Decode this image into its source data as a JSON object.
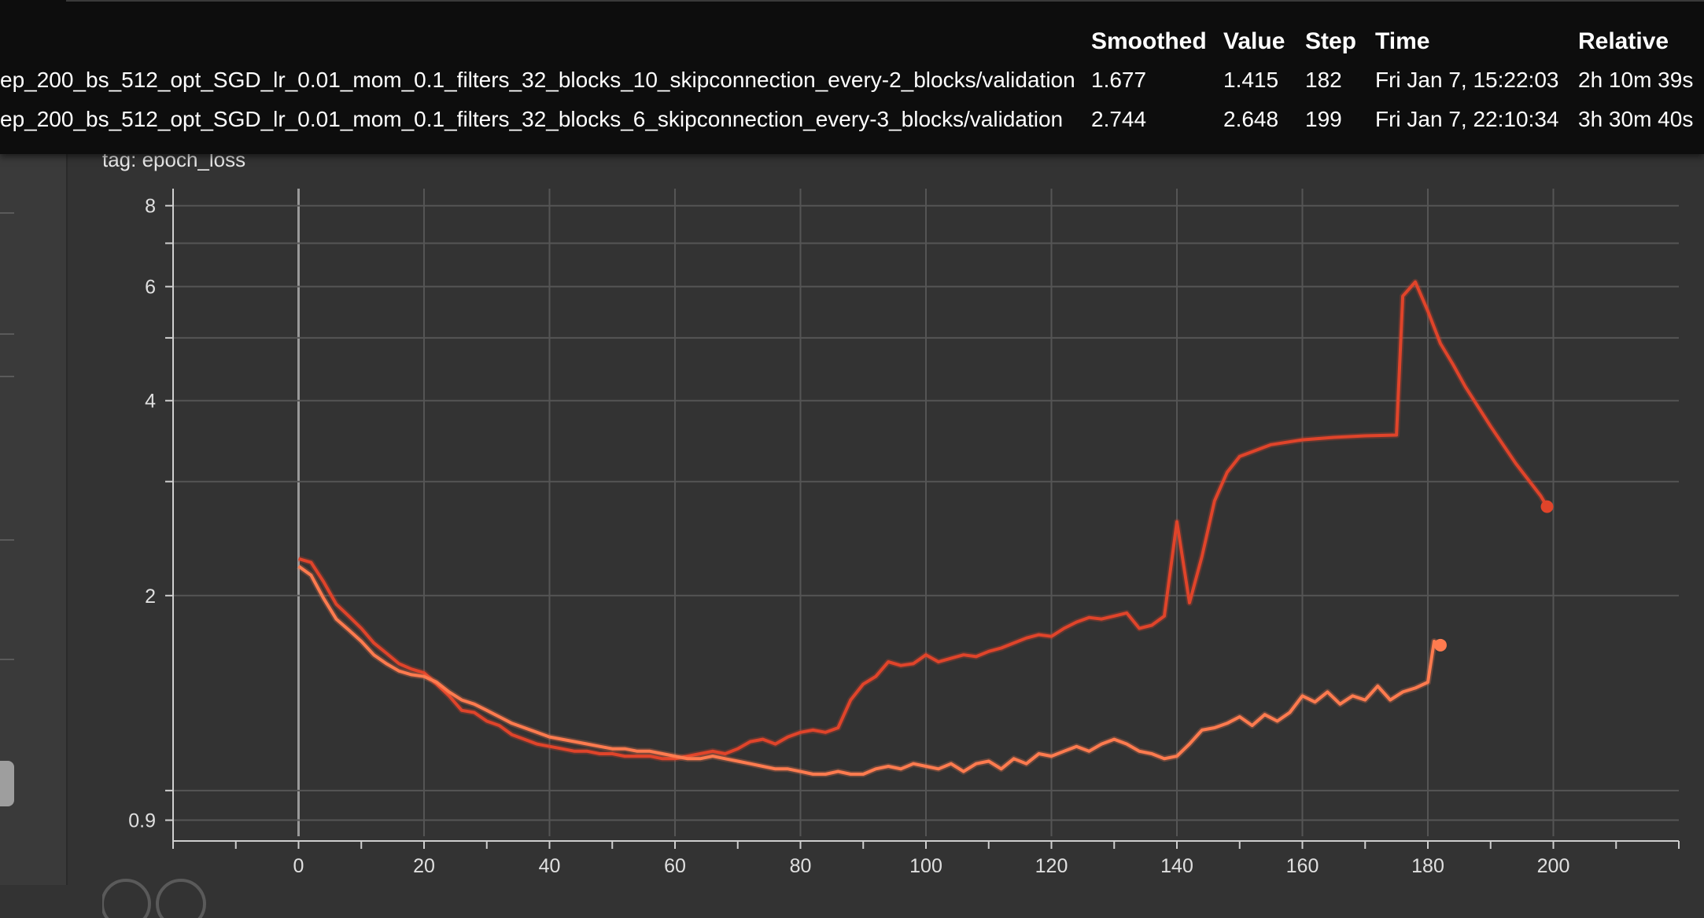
{
  "card": {
    "title_ghost": "epoch_loss",
    "title": "epoch_loss",
    "tag": "tag: epoch_loss"
  },
  "tooltip": {
    "headers": {
      "smoothed": "Smoothed",
      "value": "Value",
      "step": "Step",
      "time": "Time",
      "relative": "Relative"
    },
    "rows": [
      {
        "run": "ep_200_bs_512_opt_SGD_lr_0.01_mom_0.1_filters_32_blocks_10_skipconnection_every-2_blocks/validation",
        "smoothed": "1.677",
        "value": "1.415",
        "step": "182",
        "time": "Fri Jan 7, 15:22:03",
        "relative": "2h 10m 39s"
      },
      {
        "run": "ep_200_bs_512_opt_SGD_lr_0.01_mom_0.1_filters_32_blocks_6_skipconnection_every-3_blocks/validation",
        "smoothed": "2.744",
        "value": "2.648",
        "step": "199",
        "time": "Fri Jan 7, 22:10:34",
        "relative": "3h 30m 40s"
      }
    ]
  },
  "colors": {
    "series_light": "#ff7b4f",
    "series_dark": "#e0442a",
    "background": "#333333",
    "tooltip_bg": "#0d0d0d"
  },
  "chart_data": {
    "type": "line",
    "title": "epoch_loss",
    "xlabel": "",
    "ylabel": "",
    "yscale": "log",
    "xlim": [
      -20,
      220
    ],
    "ylim": [
      0.85,
      8.5
    ],
    "x_ticks": [
      0,
      20,
      40,
      60,
      80,
      100,
      120,
      140,
      160,
      180,
      200
    ],
    "y_tick_labels": [
      0.9,
      2,
      4,
      6,
      8
    ],
    "y_minor_gridlines": [
      1,
      3,
      5,
      7
    ],
    "grid": true,
    "series": [
      {
        "color": "#ff7b4f",
        "smoothed": [
          [
            0,
            2.22
          ],
          [
            2,
            2.15
          ],
          [
            4,
            1.98
          ],
          [
            6,
            1.84
          ],
          [
            8,
            1.77
          ],
          [
            10,
            1.7
          ],
          [
            12,
            1.62
          ],
          [
            14,
            1.57
          ],
          [
            16,
            1.53
          ],
          [
            18,
            1.51
          ],
          [
            20,
            1.5
          ],
          [
            22,
            1.47
          ],
          [
            24,
            1.42
          ],
          [
            26,
            1.38
          ],
          [
            28,
            1.36
          ],
          [
            30,
            1.33
          ],
          [
            32,
            1.3
          ],
          [
            34,
            1.27
          ],
          [
            36,
            1.25
          ],
          [
            38,
            1.23
          ],
          [
            40,
            1.21
          ],
          [
            42,
            1.2
          ],
          [
            44,
            1.19
          ],
          [
            46,
            1.18
          ],
          [
            48,
            1.17
          ],
          [
            50,
            1.16
          ],
          [
            52,
            1.16
          ],
          [
            54,
            1.15
          ],
          [
            56,
            1.15
          ],
          [
            58,
            1.14
          ],
          [
            60,
            1.13
          ],
          [
            62,
            1.12
          ],
          [
            64,
            1.12
          ],
          [
            66,
            1.13
          ],
          [
            68,
            1.12
          ],
          [
            70,
            1.11
          ],
          [
            72,
            1.1
          ],
          [
            74,
            1.09
          ],
          [
            76,
            1.08
          ],
          [
            78,
            1.08
          ],
          [
            80,
            1.07
          ],
          [
            82,
            1.06
          ],
          [
            84,
            1.06
          ],
          [
            86,
            1.07
          ],
          [
            88,
            1.06
          ],
          [
            90,
            1.06
          ],
          [
            92,
            1.08
          ],
          [
            94,
            1.09
          ],
          [
            96,
            1.08
          ],
          [
            98,
            1.1
          ],
          [
            100,
            1.09
          ],
          [
            102,
            1.08
          ],
          [
            104,
            1.1
          ],
          [
            106,
            1.07
          ],
          [
            108,
            1.1
          ],
          [
            110,
            1.11
          ],
          [
            112,
            1.08
          ],
          [
            114,
            1.12
          ],
          [
            116,
            1.1
          ],
          [
            118,
            1.14
          ],
          [
            120,
            1.13
          ],
          [
            122,
            1.15
          ],
          [
            124,
            1.17
          ],
          [
            126,
            1.15
          ],
          [
            128,
            1.18
          ],
          [
            130,
            1.2
          ],
          [
            132,
            1.18
          ],
          [
            134,
            1.15
          ],
          [
            136,
            1.14
          ],
          [
            138,
            1.12
          ],
          [
            140,
            1.13
          ],
          [
            142,
            1.18
          ],
          [
            144,
            1.24
          ],
          [
            146,
            1.25
          ],
          [
            148,
            1.27
          ],
          [
            150,
            1.3
          ],
          [
            152,
            1.26
          ],
          [
            154,
            1.31
          ],
          [
            156,
            1.28
          ],
          [
            158,
            1.32
          ],
          [
            160,
            1.4
          ],
          [
            162,
            1.37
          ],
          [
            164,
            1.42
          ],
          [
            166,
            1.36
          ],
          [
            168,
            1.4
          ],
          [
            170,
            1.38
          ],
          [
            172,
            1.45
          ],
          [
            174,
            1.38
          ],
          [
            176,
            1.42
          ],
          [
            178,
            1.44
          ],
          [
            180,
            1.47
          ],
          [
            181,
            1.7
          ],
          [
            182,
            1.677
          ]
        ],
        "last_value": 1.415,
        "last_step": 182
      },
      {
        "color": "#e0442a",
        "smoothed": [
          [
            0,
            2.28
          ],
          [
            2,
            2.25
          ],
          [
            4,
            2.1
          ],
          [
            6,
            1.94
          ],
          [
            8,
            1.86
          ],
          [
            10,
            1.78
          ],
          [
            12,
            1.69
          ],
          [
            14,
            1.63
          ],
          [
            16,
            1.57
          ],
          [
            18,
            1.54
          ],
          [
            20,
            1.52
          ],
          [
            22,
            1.46
          ],
          [
            24,
            1.4
          ],
          [
            26,
            1.33
          ],
          [
            28,
            1.32
          ],
          [
            30,
            1.28
          ],
          [
            32,
            1.26
          ],
          [
            34,
            1.22
          ],
          [
            36,
            1.2
          ],
          [
            38,
            1.18
          ],
          [
            40,
            1.17
          ],
          [
            42,
            1.16
          ],
          [
            44,
            1.15
          ],
          [
            46,
            1.15
          ],
          [
            48,
            1.14
          ],
          [
            50,
            1.14
          ],
          [
            52,
            1.13
          ],
          [
            54,
            1.13
          ],
          [
            56,
            1.13
          ],
          [
            58,
            1.12
          ],
          [
            60,
            1.12
          ],
          [
            62,
            1.13
          ],
          [
            64,
            1.14
          ],
          [
            66,
            1.15
          ],
          [
            68,
            1.14
          ],
          [
            70,
            1.16
          ],
          [
            72,
            1.19
          ],
          [
            74,
            1.2
          ],
          [
            76,
            1.18
          ],
          [
            78,
            1.21
          ],
          [
            80,
            1.23
          ],
          [
            82,
            1.24
          ],
          [
            84,
            1.23
          ],
          [
            86,
            1.25
          ],
          [
            88,
            1.38
          ],
          [
            90,
            1.46
          ],
          [
            92,
            1.5
          ],
          [
            94,
            1.58
          ],
          [
            96,
            1.56
          ],
          [
            98,
            1.57
          ],
          [
            100,
            1.62
          ],
          [
            102,
            1.58
          ],
          [
            104,
            1.6
          ],
          [
            106,
            1.62
          ],
          [
            108,
            1.61
          ],
          [
            110,
            1.64
          ],
          [
            112,
            1.66
          ],
          [
            114,
            1.69
          ],
          [
            116,
            1.72
          ],
          [
            118,
            1.74
          ],
          [
            120,
            1.73
          ],
          [
            122,
            1.78
          ],
          [
            124,
            1.82
          ],
          [
            126,
            1.85
          ],
          [
            128,
            1.84
          ],
          [
            130,
            1.86
          ],
          [
            132,
            1.88
          ],
          [
            134,
            1.78
          ],
          [
            136,
            1.8
          ],
          [
            138,
            1.86
          ],
          [
            140,
            2.6
          ],
          [
            142,
            1.95
          ],
          [
            144,
            2.3
          ],
          [
            146,
            2.8
          ],
          [
            148,
            3.1
          ],
          [
            150,
            3.28
          ],
          [
            155,
            3.42
          ],
          [
            160,
            3.48
          ],
          [
            165,
            3.51
          ],
          [
            170,
            3.53
          ],
          [
            175,
            3.54
          ],
          [
            176,
            5.8
          ],
          [
            178,
            6.1
          ],
          [
            180,
            5.5
          ],
          [
            182,
            4.9
          ],
          [
            184,
            4.55
          ],
          [
            186,
            4.2
          ],
          [
            190,
            3.65
          ],
          [
            194,
            3.2
          ],
          [
            198,
            2.85
          ],
          [
            199,
            2.744
          ]
        ],
        "last_value": 2.648,
        "last_step": 199
      }
    ]
  }
}
